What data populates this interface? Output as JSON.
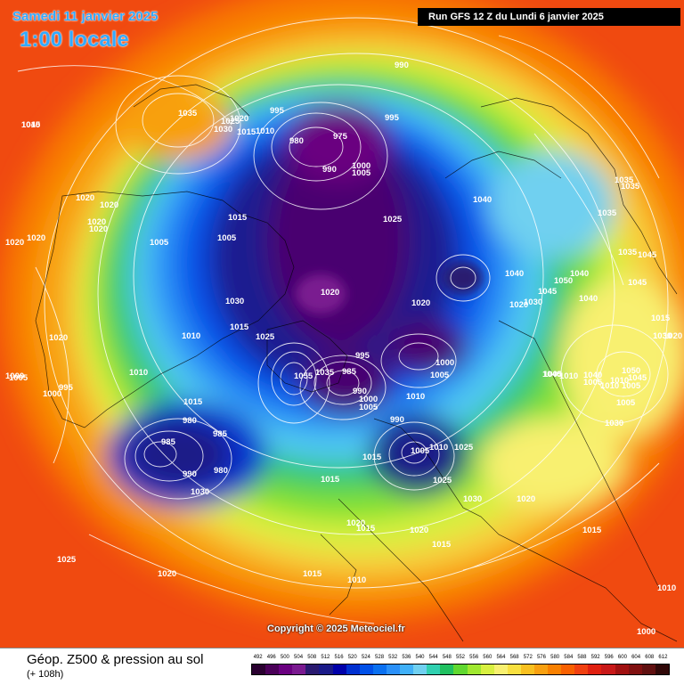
{
  "header": {
    "date": "Samedi 11 janvier 2025",
    "time": "1:00 locale",
    "run": "Run GFS 12 Z du Lundi 6 janvier 2025"
  },
  "copyright": "Copyright © 2025 Meteociel.fr",
  "footer": {
    "title": "Géop. Z500 & pression au sol",
    "subtitle": "(+ 108h)"
  },
  "scale": {
    "labels": [
      "492",
      "496",
      "500",
      "504",
      "508",
      "512",
      "516",
      "520",
      "524",
      "528",
      "532",
      "536",
      "540",
      "544",
      "548",
      "552",
      "556",
      "560",
      "564",
      "568",
      "572",
      "576",
      "580",
      "584",
      "588",
      "592",
      "596",
      "600",
      "604",
      "608",
      "612"
    ],
    "colors": [
      "#2a0030",
      "#4a0058",
      "#6a0080",
      "#7a1a90",
      "#2a1a70",
      "#1a1a88",
      "#0000aa",
      "#0030d0",
      "#0050e8",
      "#0a70f0",
      "#2a90f8",
      "#40b0f8",
      "#70d0f0",
      "#30d0b0",
      "#20c060",
      "#60d830",
      "#a0e830",
      "#d8f040",
      "#f8f070",
      "#f8e040",
      "#f8c020",
      "#f8a010",
      "#f88000",
      "#f86000",
      "#f04010",
      "#e02010",
      "#c81818",
      "#a01010",
      "#801010",
      "#601010",
      "#300808"
    ]
  },
  "pressure_labels": [
    {
      "text": "1015",
      "name": "pressure-label"
    },
    {
      "text": "1035",
      "name": "pressure-label"
    },
    {
      "text": "1025",
      "name": "pressure-label"
    },
    {
      "text": "1020",
      "name": "pressure-label"
    },
    {
      "text": "1030",
      "name": "pressure-label"
    },
    {
      "text": "1015",
      "name": "pressure-label"
    },
    {
      "text": "1010",
      "name": "pressure-label"
    },
    {
      "text": "995",
      "name": "pressure-label"
    },
    {
      "text": "975",
      "name": "pressure-label"
    },
    {
      "text": "980",
      "name": "pressure-label"
    },
    {
      "text": "990",
      "name": "pressure-label"
    },
    {
      "text": "995",
      "name": "pressure-label"
    },
    {
      "text": "1000",
      "name": "pressure-label"
    },
    {
      "text": "1005",
      "name": "pressure-label"
    },
    {
      "text": "990",
      "name": "pressure-label"
    },
    {
      "text": "1015",
      "name": "pressure-label"
    },
    {
      "text": "1020",
      "name": "pressure-label"
    },
    {
      "text": "1020",
      "name": "pressure-label"
    },
    {
      "text": "1020",
      "name": "pressure-label"
    },
    {
      "text": "1020",
      "name": "pressure-label"
    },
    {
      "text": "1005",
      "name": "pressure-label"
    },
    {
      "text": "1005",
      "name": "pressure-label"
    },
    {
      "text": "1015",
      "name": "pressure-label"
    },
    {
      "text": "1025",
      "name": "pressure-label"
    },
    {
      "text": "1040",
      "name": "pressure-label"
    },
    {
      "text": "1035",
      "name": "pressure-label"
    },
    {
      "text": "1035",
      "name": "pressure-label"
    },
    {
      "text": "1035",
      "name": "pressure-label"
    },
    {
      "text": "1035",
      "name": "pressure-label"
    },
    {
      "text": "1045",
      "name": "pressure-label"
    },
    {
      "text": "1040",
      "name": "pressure-label"
    },
    {
      "text": "1050",
      "name": "pressure-label"
    },
    {
      "text": "1040",
      "name": "pressure-label"
    },
    {
      "text": "1045",
      "name": "pressure-label"
    },
    {
      "text": "1030",
      "name": "pressure-label"
    },
    {
      "text": "1020",
      "name": "pressure-label"
    },
    {
      "text": "1040",
      "name": "pressure-label"
    },
    {
      "text": "1045",
      "name": "pressure-label"
    },
    {
      "text": "1015",
      "name": "pressure-label"
    },
    {
      "text": "1020",
      "name": "pressure-label"
    },
    {
      "text": "1030",
      "name": "pressure-label"
    },
    {
      "text": "1020",
      "name": "pressure-label"
    },
    {
      "text": "1010",
      "name": "pressure-label"
    },
    {
      "text": "1025",
      "name": "pressure-label"
    },
    {
      "text": "1020",
      "name": "pressure-label"
    },
    {
      "text": "1000",
      "name": "pressure-label"
    },
    {
      "text": "995",
      "name": "pressure-label"
    },
    {
      "text": "1005",
      "name": "pressure-label"
    },
    {
      "text": "1035",
      "name": "pressure-label"
    },
    {
      "text": "1055",
      "name": "pressure-label"
    },
    {
      "text": "985",
      "name": "pressure-label"
    },
    {
      "text": "990",
      "name": "pressure-label"
    },
    {
      "text": "1000",
      "name": "pressure-label"
    },
    {
      "text": "1005",
      "name": "pressure-label"
    },
    {
      "text": "1010",
      "name": "pressure-label"
    },
    {
      "text": "1040",
      "name": "pressure-label"
    },
    {
      "text": "1040",
      "name": "pressure-label"
    },
    {
      "text": "1050",
      "name": "pressure-label"
    },
    {
      "text": "1045",
      "name": "pressure-label"
    },
    {
      "text": "1010",
      "name": "pressure-label"
    },
    {
      "text": "1020",
      "name": "pressure-label"
    },
    {
      "text": "1020",
      "name": "pressure-label"
    },
    {
      "text": "1010",
      "name": "pressure-label"
    },
    {
      "text": "1005",
      "name": "pressure-label"
    },
    {
      "text": "1000",
      "name": "pressure-label"
    },
    {
      "text": "995",
      "name": "pressure-label"
    },
    {
      "text": "1015",
      "name": "pressure-label"
    },
    {
      "text": "980",
      "name": "pressure-label"
    },
    {
      "text": "985",
      "name": "pressure-label"
    },
    {
      "text": "985",
      "name": "pressure-label"
    },
    {
      "text": "990",
      "name": "pressure-label"
    },
    {
      "text": "980",
      "name": "pressure-label"
    },
    {
      "text": "1030",
      "name": "pressure-label"
    },
    {
      "text": "1015",
      "name": "pressure-label"
    },
    {
      "text": "990",
      "name": "pressure-label"
    },
    {
      "text": "1005",
      "name": "pressure-label"
    },
    {
      "text": "1010",
      "name": "pressure-label"
    },
    {
      "text": "1025",
      "name": "pressure-label"
    },
    {
      "text": "1025",
      "name": "pressure-label"
    },
    {
      "text": "1015",
      "name": "pressure-label"
    },
    {
      "text": "1030",
      "name": "pressure-label"
    },
    {
      "text": "1020",
      "name": "pressure-label"
    },
    {
      "text": "1020",
      "name": "pressure-label"
    },
    {
      "text": "1015",
      "name": "pressure-label"
    },
    {
      "text": "1020",
      "name": "pressure-label"
    },
    {
      "text": "1015",
      "name": "pressure-label"
    },
    {
      "text": "1015",
      "name": "pressure-label"
    },
    {
      "text": "1030",
      "name": "pressure-label"
    },
    {
      "text": "1025",
      "name": "pressure-label"
    },
    {
      "text": "1020",
      "name": "pressure-label"
    },
    {
      "text": "1015",
      "name": "pressure-label"
    },
    {
      "text": "1010",
      "name": "pressure-label"
    },
    {
      "text": "1010",
      "name": "pressure-label"
    },
    {
      "text": "1000",
      "name": "pressure-label"
    },
    {
      "text": "1020",
      "name": "pressure-label"
    },
    {
      "text": "1030",
      "name": "pressure-label"
    },
    {
      "text": "1005",
      "name": "pressure-label"
    },
    {
      "text": "1005",
      "name": "pressure-label"
    },
    {
      "text": "1010",
      "name": "pressure-label"
    },
    {
      "text": "1005",
      "name": "pressure-label"
    },
    {
      "text": "1000",
      "name": "pressure-label"
    },
    {
      "text": "1010",
      "name": "pressure-label"
    },
    {
      "text": "1005",
      "name": "pressure-label"
    },
    {
      "text": "1040",
      "name": "pressure-label"
    }
  ]
}
